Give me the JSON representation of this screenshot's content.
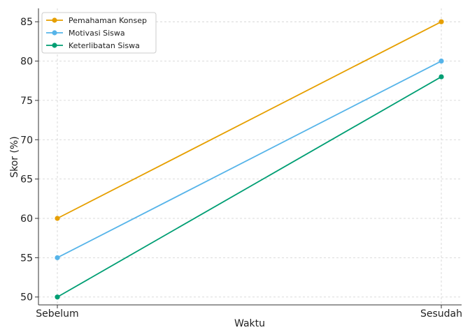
{
  "chart_data": {
    "type": "line",
    "categories": [
      "Sebelum",
      "Sesudah"
    ],
    "series": [
      {
        "name": "Pemahaman Konsep",
        "values": [
          60,
          85
        ],
        "color": "#E69F00"
      },
      {
        "name": "Motivasi Siswa",
        "values": [
          55,
          80
        ],
        "color": "#56B4E9"
      },
      {
        "name": "Keterlibatan Siswa",
        "values": [
          50,
          78
        ],
        "color": "#009E73"
      }
    ],
    "title": "",
    "xlabel": "Waktu",
    "ylabel": "Skor (%)",
    "ylim": [
      49,
      86.7
    ],
    "yticks": [
      50,
      55,
      60,
      65,
      70,
      75,
      80,
      85
    ],
    "grid": true,
    "legend_position": "top-left"
  }
}
